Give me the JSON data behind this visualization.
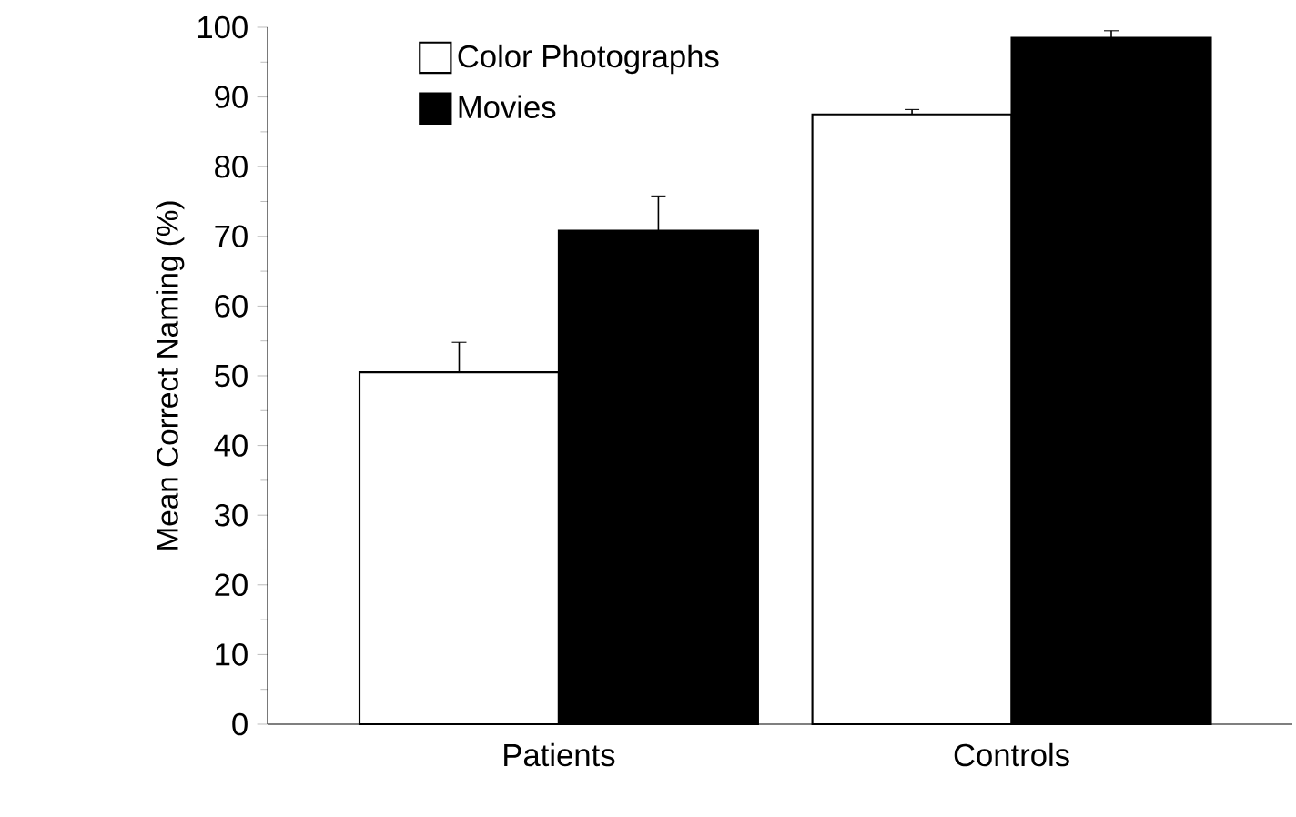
{
  "chart_data": {
    "type": "bar",
    "ylabel": "Mean Correct Naming (%)",
    "categories": [
      "Patients",
      "Controls"
    ],
    "series": [
      {
        "name": "Color Photographs",
        "color": "#ffffff",
        "values": [
          50.5,
          87.5
        ],
        "errors": [
          4.3,
          0.7
        ]
      },
      {
        "name": "Movies",
        "color": "#000000",
        "values": [
          70.8,
          98.5
        ],
        "errors": [
          5,
          1
        ]
      }
    ],
    "ylim": [
      0,
      100
    ],
    "yticks": [
      0,
      10,
      20,
      30,
      40,
      50,
      60,
      70,
      80,
      90,
      100
    ],
    "legend": "top left"
  }
}
